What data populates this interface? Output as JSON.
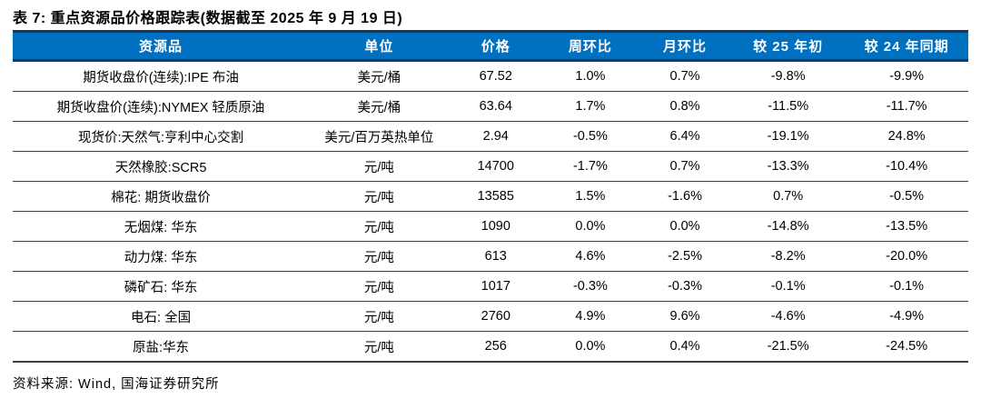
{
  "title": "表 7: 重点资源品价格跟踪表(数据截至 2025 年 9 月 19 日)",
  "source": "资料来源: Wind, 国海证券研究所",
  "colors": {
    "header_bg": "#0070C0",
    "header_edge": "#17375D",
    "row_divider": "#3f3f3f",
    "header_text": "#ffffff",
    "body_text": "#000000"
  },
  "table": {
    "headers": [
      "资源品",
      "单位",
      "价格",
      "周环比",
      "月环比",
      "较 25 年初",
      "较 24 年同期"
    ],
    "rows": [
      {
        "name": "期货收盘价(连续):IPE 布油",
        "unit": "美元/桶",
        "price": "67.52",
        "wow": "1.0%",
        "mom": "0.7%",
        "ytd": "-9.8%",
        "yoy": "-9.9%"
      },
      {
        "name": "期货收盘价(连续):NYMEX 轻质原油",
        "unit": "美元/桶",
        "price": "63.64",
        "wow": "1.7%",
        "mom": "0.8%",
        "ytd": "-11.5%",
        "yoy": "-11.7%"
      },
      {
        "name": "现货价:天然气:亨利中心交割",
        "unit": "美元/百万英热单位",
        "price": "2.94",
        "wow": "-0.5%",
        "mom": "6.4%",
        "ytd": "-19.1%",
        "yoy": "24.8%"
      },
      {
        "name": "天然橡胶:SCR5",
        "unit": "元/吨",
        "price": "14700",
        "wow": "-1.7%",
        "mom": "0.7%",
        "ytd": "-13.3%",
        "yoy": "-10.4%"
      },
      {
        "name": "棉花: 期货收盘价",
        "unit": "元/吨",
        "price": "13585",
        "wow": "1.5%",
        "mom": "-1.6%",
        "ytd": "0.7%",
        "yoy": "-0.5%"
      },
      {
        "name": "无烟煤: 华东",
        "unit": "元/吨",
        "price": "1090",
        "wow": "0.0%",
        "mom": "0.0%",
        "ytd": "-14.8%",
        "yoy": "-13.5%"
      },
      {
        "name": "动力煤: 华东",
        "unit": "元/吨",
        "price": "613",
        "wow": "4.6%",
        "mom": "-2.5%",
        "ytd": "-8.2%",
        "yoy": "-20.0%"
      },
      {
        "name": "磷矿石: 华东",
        "unit": "元/吨",
        "price": "1017",
        "wow": "-0.3%",
        "mom": "-0.3%",
        "ytd": "-0.1%",
        "yoy": "-0.1%"
      },
      {
        "name": "电石: 全国",
        "unit": "元/吨",
        "price": "2760",
        "wow": "4.9%",
        "mom": "9.6%",
        "ytd": "-4.6%",
        "yoy": "-4.9%"
      },
      {
        "name": "原盐:华东",
        "unit": "元/吨",
        "price": "256",
        "wow": "0.0%",
        "mom": "0.4%",
        "ytd": "-21.5%",
        "yoy": "-24.5%"
      }
    ]
  }
}
